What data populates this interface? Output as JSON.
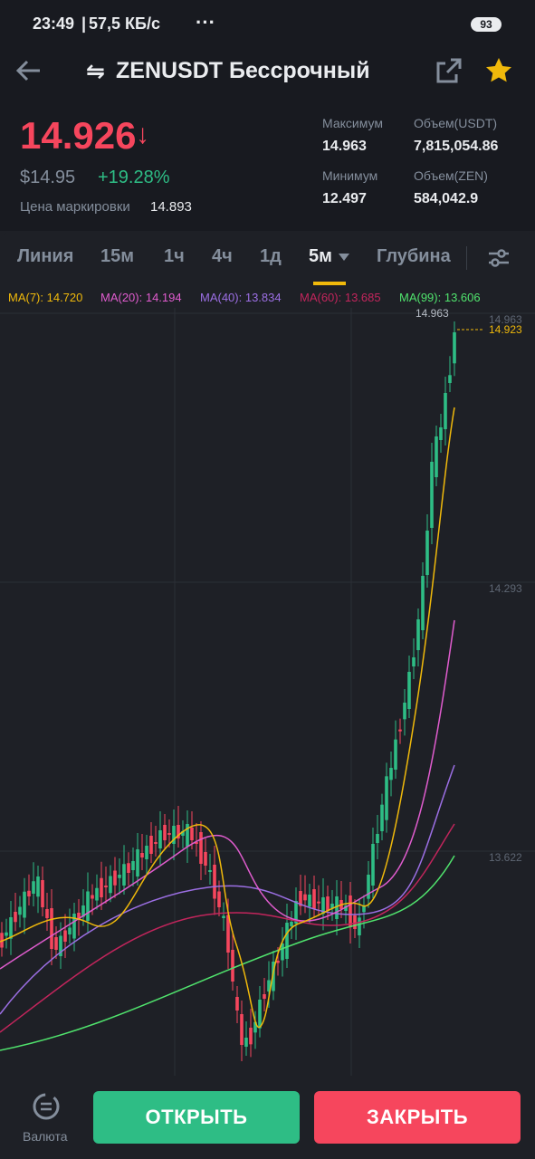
{
  "status": {
    "time": "23:49",
    "speed": "57,5 КБ/с",
    "battery": "93"
  },
  "header": {
    "title": "ZENUSDT Бессрочный"
  },
  "ticker": {
    "last_price": "14.926",
    "usd_price": "$14.95",
    "change": "+19.28%",
    "mark_label": "Цена маркировки",
    "mark_price": "14.893"
  },
  "stats": [
    {
      "label": "Максимум",
      "value": "14.963"
    },
    {
      "label": "Объем(USDT)",
      "value": "7,815,054.86"
    },
    {
      "label": "Минимум",
      "value": "12.497"
    },
    {
      "label": "Объем(ZEN)",
      "value": "584,042.9"
    }
  ],
  "tabs": [
    "Линия",
    "15м",
    "1ч",
    "4ч",
    "1д",
    "5м",
    "Глубина"
  ],
  "chart": {
    "ma": [
      {
        "text": "MA(7): 14.720",
        "color": "#f0b90b"
      },
      {
        "text": "MA(20): 14.194",
        "color": "#e05cce"
      },
      {
        "text": "MA(40): 13.834",
        "color": "#9c6fe4"
      },
      {
        "text": "MA(60): 13.685",
        "color": "#c2255c"
      },
      {
        "text": "MA(99): 13.606",
        "color": "#50e36d"
      }
    ],
    "yticks": [
      "14.963",
      "14.293",
      "13.622"
    ],
    "high_label": "14.963",
    "last_label": "14.923"
  },
  "footer": {
    "currency": "Валюта",
    "open": "ОТКРЫТЬ",
    "close": "ЗАКРЫТЬ"
  }
}
